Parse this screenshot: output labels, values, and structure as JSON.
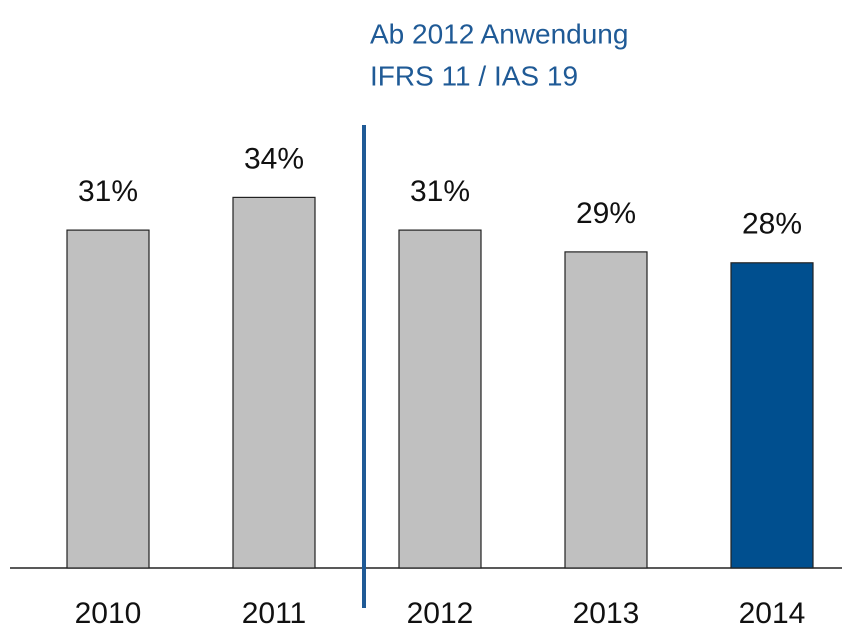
{
  "chart_data": {
    "type": "bar",
    "annotation": [
      "Ab 2012 Anwendung",
      "IFRS 11 / IAS 19"
    ],
    "categories": [
      "2010",
      "2011",
      "2012",
      "2013",
      "2014"
    ],
    "values": [
      31,
      34,
      31,
      29,
      28
    ],
    "value_labels": [
      "31%",
      "34%",
      "31%",
      "29%",
      "28%"
    ],
    "colors": [
      "#c0c0c0",
      "#c0c0c0",
      "#c0c0c0",
      "#c0c0c0",
      "#004f8f"
    ]
  }
}
